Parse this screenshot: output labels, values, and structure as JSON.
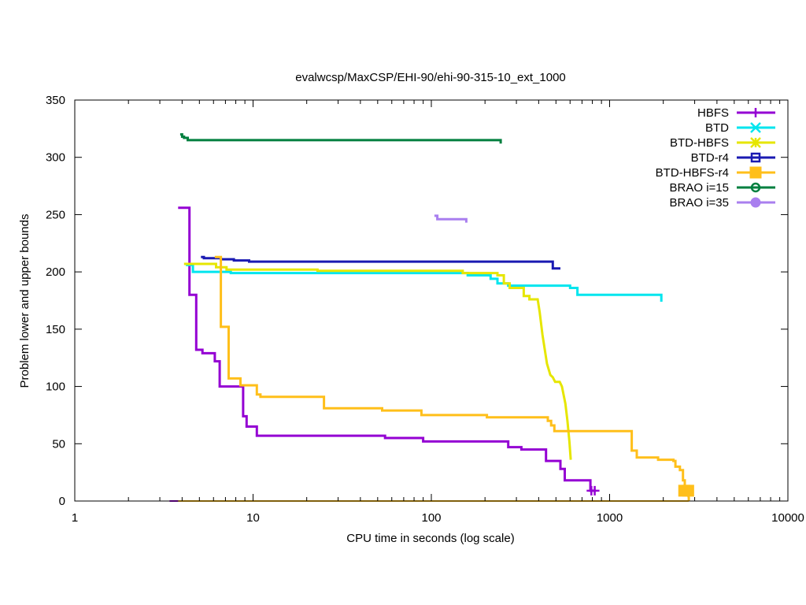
{
  "chart_data": {
    "type": "line",
    "title": "evalwcsp/MaxCSP/EHI-90/ehi-90-315-10_ext_1000",
    "xlabel": "CPU time in seconds (log scale)",
    "ylabel": "Problem lower and upper bounds",
    "xscale": "log",
    "xlim": [
      1,
      10000
    ],
    "ylim": [
      0,
      350
    ],
    "xticks": [
      {
        "value": 1,
        "label": "1"
      },
      {
        "value": 10,
        "label": "10"
      },
      {
        "value": 100,
        "label": "100"
      },
      {
        "value": 1000,
        "label": "1000"
      },
      {
        "value": 10000,
        "label": "10000"
      }
    ],
    "yticks": [
      {
        "value": 0,
        "label": "0"
      },
      {
        "value": 50,
        "label": "50"
      },
      {
        "value": 100,
        "label": "100"
      },
      {
        "value": 150,
        "label": "150"
      },
      {
        "value": 200,
        "label": "200"
      },
      {
        "value": 250,
        "label": "250"
      },
      {
        "value": 300,
        "label": "300"
      },
      {
        "value": 350,
        "label": "350"
      }
    ],
    "grid": false,
    "legend_position": "top-right",
    "series": [
      {
        "name": "HBFS",
        "color": "#9400d3",
        "marker": "plus",
        "upper": [
          [
            3.8,
            256
          ],
          [
            4.4,
            256
          ],
          [
            4.4,
            180
          ],
          [
            4.8,
            180
          ],
          [
            4.8,
            132
          ],
          [
            5.2,
            132
          ],
          [
            5.2,
            129
          ],
          [
            6.1,
            129
          ],
          [
            6.1,
            122
          ],
          [
            6.5,
            122
          ],
          [
            6.5,
            100
          ],
          [
            8.8,
            100
          ],
          [
            8.8,
            74
          ],
          [
            9.2,
            74
          ],
          [
            9.2,
            65
          ],
          [
            10.5,
            65
          ],
          [
            10.5,
            57
          ],
          [
            55,
            57
          ],
          [
            55,
            55
          ],
          [
            90,
            55
          ],
          [
            90,
            52
          ],
          [
            270,
            52
          ],
          [
            270,
            47
          ],
          [
            320,
            47
          ],
          [
            320,
            45
          ],
          [
            440,
            45
          ],
          [
            440,
            35
          ],
          [
            530,
            35
          ],
          [
            530,
            28
          ],
          [
            560,
            28
          ],
          [
            560,
            18
          ],
          [
            780,
            18
          ],
          [
            780,
            9
          ],
          [
            830,
            9
          ]
        ],
        "lower": [
          [
            3.4,
            0
          ],
          [
            830,
            0
          ]
        ],
        "markers": [
          [
            790,
            9
          ],
          [
            825,
            9
          ]
        ]
      },
      {
        "name": "BTD",
        "color": "#00e5ee",
        "marker": "cross",
        "upper": [
          [
            4.2,
            206
          ],
          [
            4.6,
            206
          ],
          [
            4.6,
            200
          ],
          [
            7.5,
            200
          ],
          [
            7.5,
            199
          ],
          [
            160,
            199
          ],
          [
            160,
            197
          ],
          [
            215,
            197
          ],
          [
            215,
            194
          ],
          [
            235,
            194
          ],
          [
            235,
            190
          ],
          [
            270,
            190
          ],
          [
            270,
            188
          ],
          [
            600,
            188
          ],
          [
            600,
            186
          ],
          [
            660,
            186
          ],
          [
            660,
            180
          ],
          [
            1950,
            180
          ],
          [
            1950,
            174
          ]
        ],
        "lower": [],
        "markers": []
      },
      {
        "name": "BTD-HBFS",
        "color": "#e6e600",
        "marker": "star",
        "upper": [
          [
            4.1,
            207
          ],
          [
            6.2,
            207
          ],
          [
            6.2,
            204
          ],
          [
            7.1,
            204
          ],
          [
            7.1,
            202
          ],
          [
            23,
            202
          ],
          [
            23,
            201
          ],
          [
            150,
            201
          ],
          [
            150,
            199
          ],
          [
            235,
            199
          ],
          [
            235,
            197
          ],
          [
            255,
            197
          ],
          [
            255,
            190
          ],
          [
            275,
            190
          ],
          [
            275,
            186
          ],
          [
            330,
            186
          ],
          [
            330,
            179
          ],
          [
            355,
            179
          ],
          [
            355,
            176
          ],
          [
            395,
            176
          ],
          [
            405,
            165
          ],
          [
            420,
            145
          ],
          [
            445,
            120
          ],
          [
            465,
            110
          ],
          [
            480,
            108
          ],
          [
            495,
            104
          ],
          [
            525,
            104
          ],
          [
            540,
            100
          ],
          [
            565,
            85
          ],
          [
            580,
            70
          ],
          [
            595,
            52
          ],
          [
            605,
            36
          ]
        ],
        "lower": [],
        "markers": []
      },
      {
        "name": "BTD-r4",
        "color": "#1a1ab2",
        "marker": "square",
        "upper": [
          [
            5.1,
            213
          ],
          [
            5.3,
            213
          ],
          [
            5.3,
            212
          ],
          [
            6.6,
            212
          ],
          [
            6.6,
            211
          ],
          [
            7.8,
            211
          ],
          [
            7.8,
            210
          ],
          [
            9.5,
            210
          ],
          [
            9.5,
            209
          ],
          [
            480,
            209
          ],
          [
            480,
            203
          ],
          [
            530,
            203
          ]
        ],
        "lower": [],
        "markers": []
      },
      {
        "name": "BTD-HBFS-r4",
        "color": "#ffbf1a",
        "marker": "filled-square",
        "upper": [
          [
            6.1,
            213
          ],
          [
            6.6,
            213
          ],
          [
            6.6,
            152
          ],
          [
            7.3,
            152
          ],
          [
            7.3,
            107
          ],
          [
            8.5,
            107
          ],
          [
            8.5,
            101
          ],
          [
            10.5,
            101
          ],
          [
            10.5,
            93
          ],
          [
            11,
            93
          ],
          [
            11,
            91
          ],
          [
            25,
            91
          ],
          [
            25,
            81
          ],
          [
            53,
            81
          ],
          [
            53,
            79
          ],
          [
            88,
            79
          ],
          [
            88,
            75
          ],
          [
            205,
            75
          ],
          [
            205,
            73
          ],
          [
            450,
            73
          ],
          [
            450,
            70
          ],
          [
            470,
            70
          ],
          [
            470,
            66
          ],
          [
            490,
            66
          ],
          [
            490,
            61
          ],
          [
            1330,
            61
          ],
          [
            1330,
            44
          ],
          [
            1420,
            44
          ],
          [
            1420,
            38
          ],
          [
            1870,
            38
          ],
          [
            1870,
            36
          ],
          [
            2280,
            36
          ],
          [
            2280,
            35
          ],
          [
            2340,
            35
          ],
          [
            2340,
            30
          ],
          [
            2480,
            30
          ],
          [
            2480,
            27
          ],
          [
            2580,
            27
          ],
          [
            2580,
            18
          ],
          [
            2640,
            18
          ],
          [
            2640,
            11
          ],
          [
            2680,
            11
          ],
          [
            2680,
            7
          ],
          [
            2730,
            7
          ],
          [
            2780,
            3
          ],
          [
            2780,
            0
          ]
        ],
        "lower": [
          [
            3.8,
            0
          ],
          [
            2780,
            0
          ]
        ],
        "markers": [
          [
            2620,
            9
          ],
          [
            2760,
            9
          ]
        ]
      },
      {
        "name": "BRAO i=15",
        "color": "#007f3f",
        "marker": "circle",
        "upper": [
          [
            3.9,
            320
          ],
          [
            4.0,
            320
          ],
          [
            4.0,
            318
          ],
          [
            4.1,
            318
          ],
          [
            4.1,
            317
          ],
          [
            4.3,
            317
          ],
          [
            4.3,
            315
          ],
          [
            245,
            315
          ],
          [
            245,
            312
          ]
        ],
        "lower": [],
        "markers": []
      },
      {
        "name": "BRAO i=35",
        "color": "#a97fef",
        "marker": "filled-circle",
        "upper": [
          [
            104,
            249
          ],
          [
            108,
            249
          ],
          [
            108,
            246
          ],
          [
            157,
            246
          ],
          [
            157,
            243
          ]
        ],
        "lower": [],
        "markers": []
      }
    ]
  }
}
